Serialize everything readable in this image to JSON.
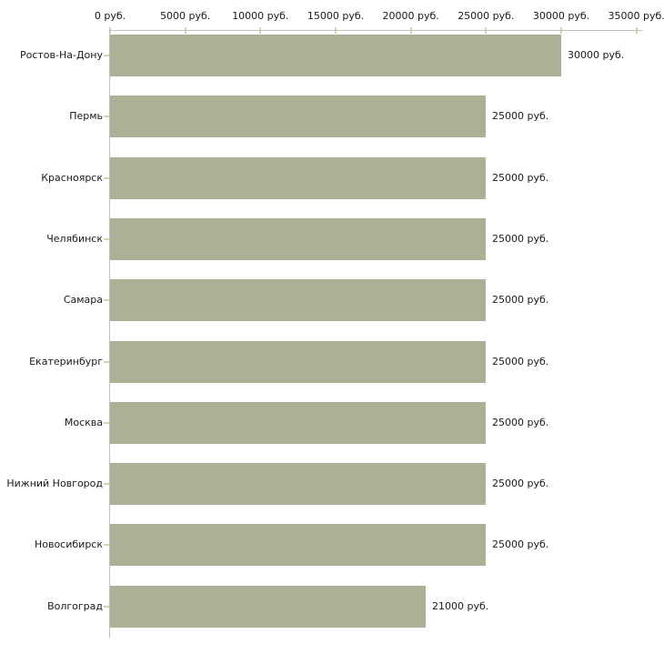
{
  "chart_data": {
    "type": "bar",
    "orientation": "horizontal",
    "categories": [
      "Ростов-На-Дону",
      "Пермь",
      "Красноярск",
      "Челябинск",
      "Самара",
      "Екатеринбург",
      "Москва",
      "Нижний Новгород",
      "Новосибирск",
      "Волгоград"
    ],
    "values": [
      30000,
      25000,
      25000,
      25000,
      25000,
      25000,
      25000,
      25000,
      25000,
      21000
    ],
    "value_labels": [
      "30000 руб.",
      "25000 руб.",
      "25000 руб.",
      "25000 руб.",
      "25000 руб.",
      "25000 руб.",
      "25000 руб.",
      "25000 руб.",
      "25000 руб.",
      "21000 руб."
    ],
    "x_tick_values": [
      0,
      5000,
      10000,
      15000,
      20000,
      25000,
      30000,
      35000
    ],
    "x_tick_labels": [
      "0 руб.",
      "5000 руб.",
      "10000 руб.",
      "15000 руб.",
      "20000 руб.",
      "25000 руб.",
      "30000 руб.",
      "35000 руб."
    ],
    "xlim": [
      0,
      35000
    ],
    "grid": false,
    "legend": "none",
    "axis_position": "top",
    "colors": {
      "bar": "#abb194",
      "axis_line": "#c0c0c0",
      "tick_mark": "#d4d5ab",
      "text": "#1a1a1a",
      "background": "#ffffff"
    }
  }
}
